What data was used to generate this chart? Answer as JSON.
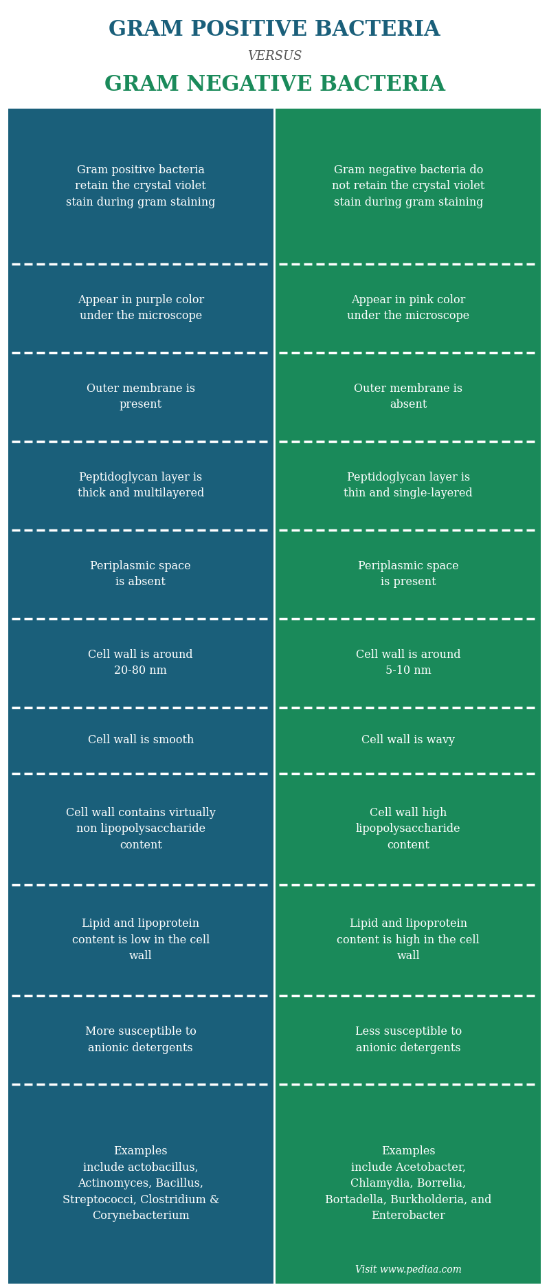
{
  "title_line1": "GRAM POSITIVE BACTERIA",
  "title_line2": "VERSUS",
  "title_line3": "GRAM NEGATIVE BACTERIA",
  "title_color1": "#1a5f7a",
  "title_color2": "#555555",
  "title_color3": "#1a8a5a",
  "col_left_color": "#1a5f7a",
  "col_right_color": "#1a8a5a",
  "text_color": "#ffffff",
  "background_color": "#ffffff",
  "rows": [
    {
      "left": "Gram positive bacteria\nretain the crystal violet\nstain during gram staining",
      "right": "Gram negative bacteria do\nnot retain the crystal violet\nstain during gram staining"
    },
    {
      "left": "Appear in purple color\nunder the microscope",
      "right": "Appear in pink color\nunder the microscope"
    },
    {
      "left": "Outer membrane is\npresent",
      "right": "Outer membrane is\nabsent"
    },
    {
      "left": "Peptidoglycan layer is\nthick and multilayered",
      "right": "Peptidoglycan layer is\nthin and single-layered"
    },
    {
      "left": "Periplasmic space\nis absent",
      "right": "Periplasmic space\nis present"
    },
    {
      "left": "Cell wall is around\n20-80 nm",
      "right": "Cell wall is around\n5-10 nm"
    },
    {
      "left": "Cell wall is smooth",
      "right": "Cell wall is wavy"
    },
    {
      "left": "Cell wall contains virtually\nnon lipopolysaccharide\ncontent",
      "right": "Cell wall high\nlipopolysaccharide\ncontent"
    },
    {
      "left": "Lipid and lipoprotein\ncontent is low in the cell\nwall",
      "right": "Lipid and lipoprotein\ncontent is high in the cell\nwall"
    },
    {
      "left": "More susceptible to\nanionic detergents",
      "right": "Less susceptible to\nanionic detergents"
    },
    {
      "left": "Examples\ninclude actobacillus,\nActinomyces, Bacillus,\nStreptococci, Clostridium &\nCorynebacterium",
      "right": "Examples\ninclude Acetobacter,\nChlamydia, Borrelia,\nBortadella, Burkholderia, and\nEnterobacter"
    }
  ],
  "footer_text": "Visit www.pediaa.com",
  "fig_width": 7.99,
  "fig_height": 18.69
}
